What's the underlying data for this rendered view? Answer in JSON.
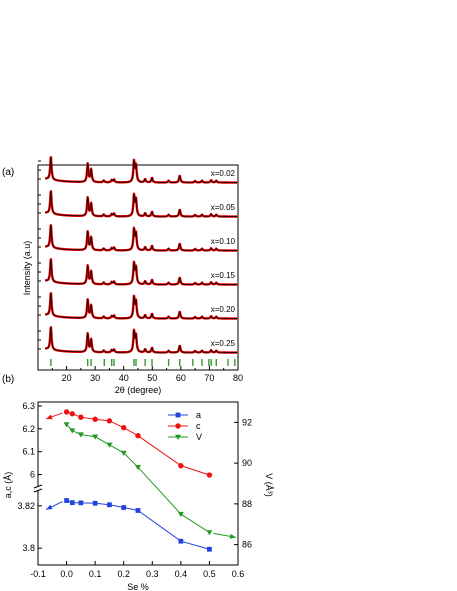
{
  "chart_data": [
    {
      "panel": "(a)",
      "type": "line",
      "xlabel": "2θ (degree)",
      "ylabel": "Intensity (a.u)",
      "xlim": [
        10,
        80
      ],
      "xticks": [
        20,
        30,
        40,
        50,
        60,
        70,
        80
      ],
      "series_labels": [
        "x=0.02",
        "x=0.05",
        "x=0.10",
        "x=0.15",
        "x=0.20",
        "x=0.25"
      ],
      "peaks": [
        {
          "x": 14.5,
          "h": 1.0
        },
        {
          "x": 27.4,
          "h": 0.8
        },
        {
          "x": 28.6,
          "h": 0.55
        },
        {
          "x": 33.0,
          "h": 0.08
        },
        {
          "x": 35.8,
          "h": 0.1
        },
        {
          "x": 36.6,
          "h": 0.12
        },
        {
          "x": 43.6,
          "h": 0.9
        },
        {
          "x": 44.3,
          "h": 0.7
        },
        {
          "x": 47.5,
          "h": 0.14
        },
        {
          "x": 49.9,
          "h": 0.2
        },
        {
          "x": 55.7,
          "h": 0.08
        },
        {
          "x": 59.6,
          "h": 0.3
        },
        {
          "x": 65.0,
          "h": 0.07
        },
        {
          "x": 67.4,
          "h": 0.08
        },
        {
          "x": 70.6,
          "h": 0.1
        },
        {
          "x": 72.4,
          "h": 0.08
        }
      ],
      "reflection_ticks": [
        14.5,
        27.4,
        28.6,
        33.2,
        35.8,
        36.6,
        43.6,
        44.3,
        47.5,
        49.9,
        55.7,
        59.6,
        64.2,
        67.4,
        69.8,
        70.6,
        72.4,
        76.5,
        78.9
      ],
      "colors": {
        "observed": "#dd0000",
        "calculated": "#000000",
        "ticks": "#339933"
      }
    },
    {
      "panel": "(b)",
      "type": "line",
      "xlabel": "Se %",
      "ylabel_left": "a,c (Å)",
      "ylabel_right": "V (Å³)",
      "xlim": [
        -0.1,
        0.6
      ],
      "xticks": [
        -0.1,
        0.0,
        0.1,
        0.2,
        0.3,
        0.4,
        0.5,
        0.6
      ],
      "xtick_labels": [
        "-0.1",
        "0.0",
        "0.1",
        "0.2",
        "0.3",
        "0.4",
        "0.5",
        "0.6"
      ],
      "upper_ylim": [
        5.95,
        6.3
      ],
      "upper_yticks": [
        6.0,
        6.1,
        6.2,
        6.3
      ],
      "lower_ylim": [
        3.793,
        3.827
      ],
      "lower_yticks": [
        3.8,
        3.82
      ],
      "right_ylim": [
        85,
        93
      ],
      "right_yticks": [
        86,
        88,
        90,
        92
      ],
      "series": [
        {
          "name": "a",
          "axis": "lower",
          "color": "#2244dd",
          "marker": "square",
          "x": [
            0.0,
            0.02,
            0.05,
            0.1,
            0.15,
            0.2,
            0.25,
            0.4,
            0.5
          ],
          "y": [
            3.8225,
            3.8215,
            3.8214,
            3.8212,
            3.8205,
            3.8192,
            3.8178,
            3.8033,
            3.7995
          ]
        },
        {
          "name": "c",
          "axis": "upper",
          "color": "#ee1111",
          "marker": "circle",
          "x": [
            0.0,
            0.02,
            0.05,
            0.1,
            0.15,
            0.2,
            0.25,
            0.4,
            0.5
          ],
          "y": [
            6.274,
            6.266,
            6.251,
            6.242,
            6.235,
            6.205,
            6.17,
            6.039,
            5.998
          ]
        },
        {
          "name": "V",
          "axis": "right",
          "color": "#229922",
          "marker": "triangle-down",
          "x": [
            0.0,
            0.02,
            0.05,
            0.1,
            0.15,
            0.2,
            0.25,
            0.4,
            0.5
          ],
          "y": [
            91.9,
            91.6,
            91.4,
            91.3,
            90.9,
            90.5,
            89.8,
            87.5,
            86.6
          ]
        }
      ],
      "legend": [
        "a",
        "c",
        "V"
      ],
      "legend_position": "top-right"
    }
  ]
}
